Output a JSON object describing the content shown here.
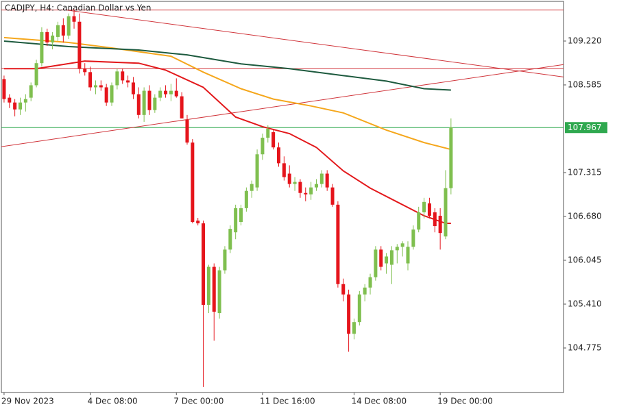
{
  "chart_data": {
    "type": "candlestick",
    "title": "CADJPY, H4:  Canadian Dollar vs Yen",
    "up_color": "#7fbf4f",
    "down_color": "#e5141b",
    "categories": [
      "29 Nov 2023",
      null,
      null,
      null,
      null,
      null,
      null,
      null,
      null,
      null,
      null,
      null,
      null,
      null,
      null,
      null,
      "4 Dec 08:00",
      null,
      null,
      null,
      null,
      null,
      null,
      null,
      null,
      null,
      null,
      null,
      null,
      null,
      null,
      null,
      "7 Dec 00:00",
      null,
      null,
      null,
      null,
      null,
      null,
      null,
      null,
      null,
      null,
      null,
      null,
      null,
      null,
      null,
      "11 Dec 16:00",
      null,
      null,
      null,
      null,
      null,
      null,
      null,
      null,
      null,
      null,
      null,
      null,
      null,
      null,
      null,
      null,
      "14 Dec 08:00",
      null,
      null,
      null,
      null,
      null,
      null,
      null,
      null,
      null,
      null,
      null,
      null,
      null,
      null,
      null,
      "19 Dec 00:00",
      null,
      null
    ],
    "ohlc": [
      [
        108.67,
        108.72,
        108.33,
        108.38
      ],
      [
        108.4,
        108.45,
        108.25,
        108.33
      ],
      [
        108.33,
        108.38,
        108.13,
        108.23
      ],
      [
        108.23,
        108.4,
        108.15,
        108.33
      ],
      [
        108.33,
        108.45,
        108.2,
        108.38
      ],
      [
        108.4,
        108.62,
        108.35,
        108.58
      ],
      [
        108.58,
        108.95,
        108.55,
        108.9
      ],
      [
        108.9,
        109.42,
        108.85,
        109.35
      ],
      [
        109.35,
        109.4,
        109.15,
        109.2
      ],
      [
        109.2,
        109.35,
        109.1,
        109.3
      ],
      [
        109.28,
        109.5,
        109.22,
        109.45
      ],
      [
        109.45,
        109.55,
        109.2,
        109.3
      ],
      [
        109.3,
        109.62,
        109.25,
        109.58
      ],
      [
        109.58,
        109.68,
        109.4,
        109.5
      ],
      [
        109.5,
        109.62,
        108.75,
        108.82
      ],
      [
        108.82,
        108.9,
        108.72,
        108.77
      ],
      [
        108.77,
        108.85,
        108.5,
        108.55
      ],
      [
        108.55,
        108.65,
        108.45,
        108.58
      ],
      [
        108.58,
        108.65,
        108.5,
        108.55
      ],
      [
        108.55,
        108.6,
        108.28,
        108.33
      ],
      [
        108.33,
        108.62,
        108.28,
        108.58
      ],
      [
        108.58,
        108.82,
        108.52,
        108.78
      ],
      [
        108.78,
        108.82,
        108.6,
        108.65
      ],
      [
        108.65,
        108.72,
        108.55,
        108.62
      ],
      [
        108.62,
        108.7,
        108.38,
        108.45
      ],
      [
        108.45,
        108.55,
        108.1,
        108.15
      ],
      [
        108.15,
        108.55,
        108.05,
        108.5
      ],
      [
        108.5,
        108.58,
        108.15,
        108.22
      ],
      [
        108.22,
        108.45,
        108.18,
        108.4
      ],
      [
        108.4,
        108.55,
        108.35,
        108.5
      ],
      [
        108.5,
        108.58,
        108.4,
        108.45
      ],
      [
        108.45,
        108.6,
        108.35,
        108.5
      ],
      [
        108.5,
        108.68,
        108.4,
        108.42
      ],
      [
        108.42,
        108.48,
        108.1,
        108.1
      ],
      [
        108.08,
        108.15,
        107.72,
        107.75
      ],
      [
        107.75,
        107.8,
        106.58,
        106.6
      ],
      [
        106.62,
        106.66,
        106.55,
        106.58
      ],
      [
        106.58,
        106.62,
        104.21,
        105.4
      ],
      [
        105.4,
        105.98,
        105.28,
        105.95
      ],
      [
        105.95,
        106.0,
        104.88,
        105.3
      ],
      [
        105.28,
        105.95,
        105.2,
        105.9
      ],
      [
        105.9,
        106.25,
        105.85,
        106.2
      ],
      [
        106.2,
        106.55,
        106.15,
        106.5
      ],
      [
        106.45,
        106.85,
        106.35,
        106.8
      ],
      [
        106.6,
        106.85,
        106.55,
        106.8
      ],
      [
        106.8,
        107.1,
        106.75,
        107.05
      ],
      [
        107.05,
        107.2,
        106.95,
        107.15
      ],
      [
        107.1,
        107.65,
        107.05,
        107.58
      ],
      [
        107.58,
        107.88,
        107.5,
        107.82
      ],
      [
        107.82,
        108.0,
        107.75,
        107.95
      ],
      [
        107.9,
        107.95,
        107.65,
        107.68
      ],
      [
        107.68,
        107.75,
        107.4,
        107.45
      ],
      [
        107.45,
        107.55,
        107.2,
        107.25
      ],
      [
        107.3,
        107.42,
        107.1,
        107.15
      ],
      [
        107.15,
        107.25,
        107.05,
        107.18
      ],
      [
        107.18,
        107.22,
        106.95,
        107.02
      ],
      [
        107.02,
        107.1,
        106.9,
        107.0
      ],
      [
        107.0,
        107.18,
        106.92,
        107.1
      ],
      [
        107.1,
        107.22,
        107.05,
        107.15
      ],
      [
        107.15,
        107.35,
        107.1,
        107.3
      ],
      [
        107.3,
        107.35,
        107.05,
        107.1
      ],
      [
        107.1,
        107.15,
        106.82,
        106.85
      ],
      [
        106.85,
        106.9,
        105.65,
        105.7
      ],
      [
        105.7,
        105.78,
        105.45,
        105.55
      ],
      [
        105.55,
        105.62,
        104.72,
        104.98
      ],
      [
        104.98,
        105.2,
        104.9,
        105.15
      ],
      [
        105.15,
        105.6,
        105.1,
        105.55
      ],
      [
        105.55,
        105.7,
        105.45,
        105.65
      ],
      [
        105.65,
        105.85,
        105.55,
        105.8
      ],
      [
        105.8,
        106.25,
        105.75,
        106.2
      ],
      [
        106.2,
        106.25,
        105.9,
        105.95
      ],
      [
        106.0,
        106.15,
        105.85,
        106.1
      ],
      [
        105.98,
        106.25,
        105.7,
        106.19
      ],
      [
        106.19,
        106.28,
        106.0,
        106.24
      ],
      [
        106.24,
        106.32,
        106.1,
        106.29
      ],
      [
        106.0,
        106.32,
        105.9,
        106.24
      ],
      [
        106.24,
        106.55,
        106.2,
        106.49
      ],
      [
        106.49,
        106.82,
        106.45,
        106.74
      ],
      [
        106.74,
        106.95,
        106.65,
        106.89
      ],
      [
        106.87,
        106.95,
        106.65,
        106.69
      ],
      [
        106.74,
        106.8,
        106.45,
        106.54
      ],
      [
        106.69,
        106.8,
        106.2,
        106.44
      ],
      [
        106.39,
        107.35,
        106.35,
        107.09
      ],
      [
        107.09,
        108.1,
        107.0,
        107.97
      ]
    ],
    "lines": [
      {
        "color": "#e3191c",
        "x": [
          0,
          6,
          15,
          25,
          30,
          37,
          43,
          48,
          53,
          58,
          63,
          68,
          73,
          78,
          82,
          83
        ],
        "values": [
          108.82,
          108.82,
          108.93,
          108.9,
          108.8,
          108.55,
          108.12,
          107.98,
          107.88,
          107.68,
          107.34,
          107.09,
          106.89,
          106.69,
          106.58,
          106.58
        ]
      },
      {
        "color": "#f5a71c",
        "x": [
          0,
          12,
          20,
          31,
          37,
          44,
          50,
          57,
          63,
          71,
          78,
          83
        ],
        "values": [
          109.27,
          109.2,
          109.12,
          109.0,
          108.77,
          108.53,
          108.38,
          108.28,
          108.18,
          107.93,
          107.75,
          107.65
        ]
      },
      {
        "color": "#1d5a3e",
        "x": [
          0,
          12,
          25,
          34,
          44,
          53,
          63,
          71,
          78,
          83
        ],
        "values": [
          109.22,
          109.14,
          109.09,
          109.02,
          108.89,
          108.82,
          108.72,
          108.64,
          108.53,
          108.51
        ]
      }
    ],
    "trendlines": [
      {
        "color": "#d0343a",
        "x": [
          -0.5,
          103.9
        ],
        "values": [
          107.69,
          108.88
        ]
      },
      {
        "color": "#d0343a",
        "x": [
          11.5,
          103.9
        ],
        "values": [
          109.67,
          108.7
        ]
      }
    ],
    "hlines": [
      {
        "color": "#d0343a",
        "value": 109.67
      },
      {
        "color": "#d0343a",
        "value": 108.82
      },
      {
        "color": "#2fa84f",
        "value": 107.967
      }
    ],
    "xlim": [
      -0.5,
      103.9
    ],
    "ylim": [
      104.13,
      109.795
    ],
    "yticks": [
      {
        "value": 109.22,
        "label": "109.220"
      },
      108.585,
      107.315,
      {
        "value": 106.68,
        "label": "106.680"
      },
      106.045,
      {
        "value": 105.41,
        "label": "105.410"
      },
      104.775
    ]
  }
}
